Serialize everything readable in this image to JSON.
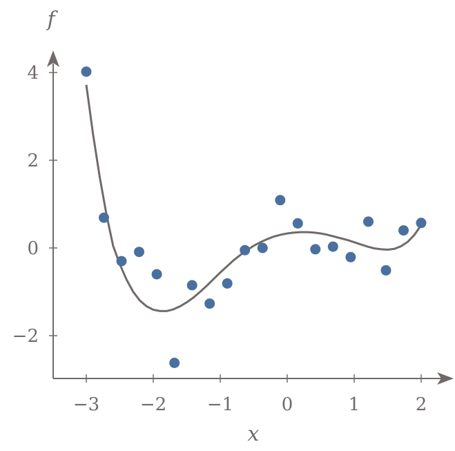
{
  "chart_data": {
    "type": "scatter",
    "xlabel": "x",
    "ylabel": "f",
    "xlim": [
      -3.5,
      2.5
    ],
    "ylim": [
      -3,
      4.6
    ],
    "x_ticks": [
      -3,
      -2,
      -1,
      0,
      1,
      2
    ],
    "x_tick_labels": [
      "−3",
      "−2",
      "−1",
      "0",
      "1",
      "2"
    ],
    "y_ticks": [
      -2,
      0,
      2,
      4
    ],
    "y_tick_labels": [
      "−2",
      "0",
      "2",
      "4"
    ],
    "grid": false,
    "colors": {
      "points": "#4a70a0",
      "line": "#706a68",
      "axes": "#706a68"
    },
    "series": [
      {
        "kind": "scatter",
        "x": [
          -3.0,
          -2.737,
          -2.474,
          -2.211,
          -1.947,
          -1.684,
          -1.421,
          -1.158,
          -0.895,
          -0.632,
          -0.368,
          -0.105,
          0.158,
          0.421,
          0.684,
          0.947,
          1.211,
          1.474,
          1.737,
          2.0
        ],
        "y": [
          4.02,
          0.69,
          -0.3,
          -0.09,
          -0.6,
          -2.62,
          -0.85,
          -1.27,
          -0.81,
          -0.05,
          0.0,
          1.09,
          0.56,
          -0.03,
          0.03,
          -0.21,
          0.6,
          -0.51,
          0.4,
          0.57
        ]
      },
      {
        "kind": "line",
        "x": [
          -3.0,
          -2.9,
          -2.8,
          -2.7,
          -2.6,
          -2.5,
          -2.4,
          -2.3,
          -2.2,
          -2.1,
          -2.0,
          -1.9,
          -1.8,
          -1.7,
          -1.6,
          -1.5,
          -1.4,
          -1.3,
          -1.2,
          -1.1,
          -1.0,
          -0.9,
          -0.8,
          -0.7,
          -0.6,
          -0.5,
          -0.4,
          -0.3,
          -0.2,
          -0.1,
          0.0,
          0.1,
          0.2,
          0.3,
          0.4,
          0.5,
          0.6,
          0.7,
          0.8,
          0.9,
          1.0,
          1.1,
          1.2,
          1.3,
          1.4,
          1.5,
          1.6,
          1.7,
          1.8,
          1.9,
          2.0
        ],
        "y": [
          3.72,
          2.6,
          1.62,
          0.77,
          0.05,
          -0.37,
          -0.72,
          -1.0,
          -1.2,
          -1.33,
          -1.41,
          -1.44,
          -1.44,
          -1.4,
          -1.33,
          -1.24,
          -1.13,
          -1.0,
          -0.86,
          -0.71,
          -0.56,
          -0.42,
          -0.28,
          -0.16,
          -0.05,
          0.05,
          0.13,
          0.2,
          0.26,
          0.3,
          0.33,
          0.35,
          0.36,
          0.36,
          0.35,
          0.33,
          0.3,
          0.26,
          0.22,
          0.18,
          0.13,
          0.08,
          0.03,
          -0.01,
          -0.03,
          -0.04,
          -0.02,
          0.04,
          0.14,
          0.3,
          0.52
        ]
      }
    ]
  }
}
